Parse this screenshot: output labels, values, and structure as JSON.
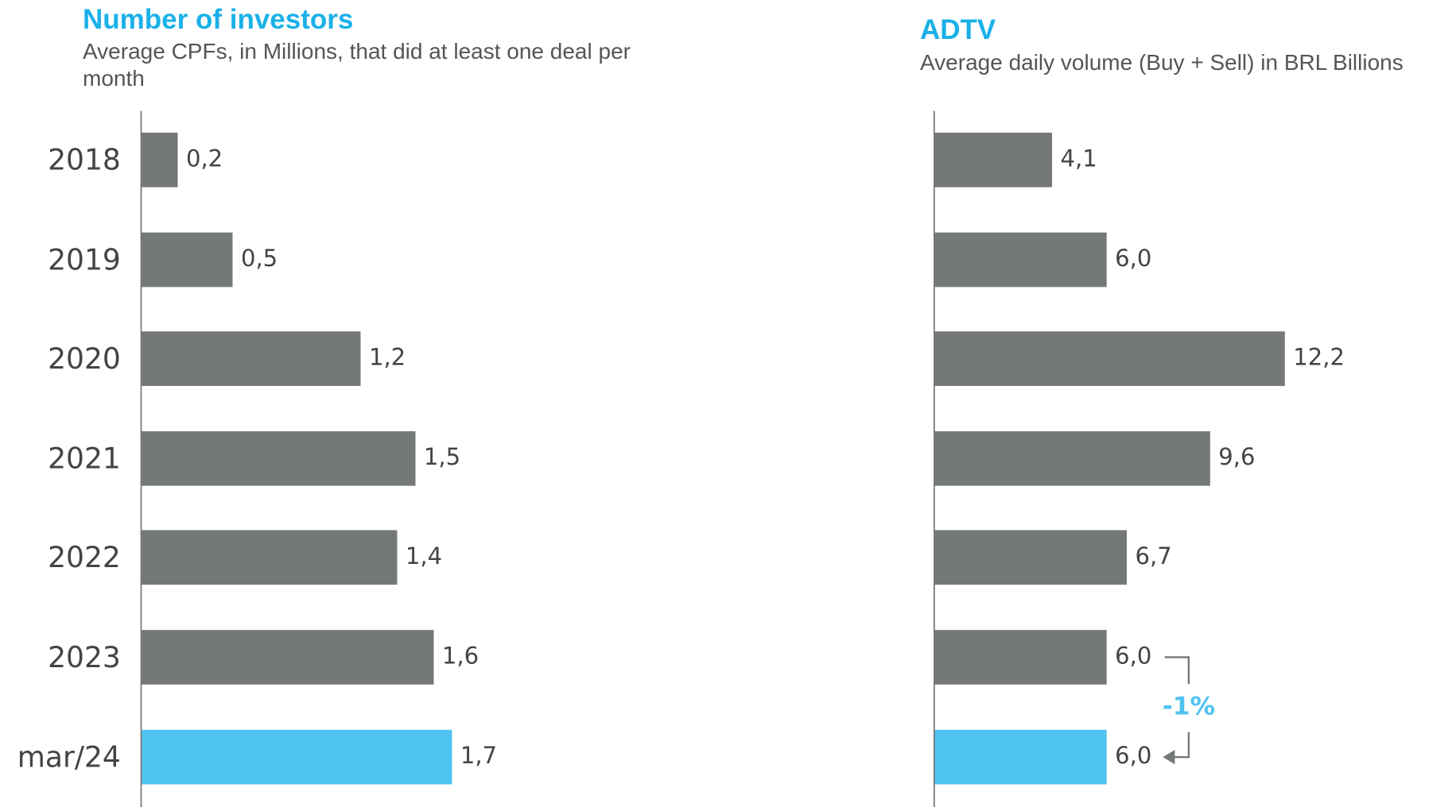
{
  "chart_data": [
    {
      "type": "bar",
      "orientation": "horizontal",
      "title": "Number of investors",
      "subtitle": "Average CPFs, in Millions, that did at least one deal per month",
      "categories": [
        "2018",
        "2019",
        "2020",
        "2021",
        "2022",
        "2023",
        "mar/24"
      ],
      "values": [
        0.2,
        0.5,
        1.2,
        1.5,
        1.4,
        1.6,
        1.7
      ],
      "value_labels": [
        "0,2",
        "0,5",
        "1,2",
        "1,5",
        "1,4",
        "1,6",
        "1,7"
      ],
      "colors": [
        "#747877",
        "#747877",
        "#747877",
        "#747877",
        "#747877",
        "#747877",
        "#4fc3f1"
      ],
      "xlim": [
        0,
        4.2
      ]
    },
    {
      "type": "bar",
      "orientation": "horizontal",
      "title": "ADTV",
      "subtitle": "Average daily volume (Buy + Sell) in BRL Billions",
      "categories": [
        "2018",
        "2019",
        "2020",
        "2021",
        "2022",
        "2023",
        "mar/24"
      ],
      "values": [
        4.1,
        6.0,
        12.2,
        9.6,
        6.7,
        6.0,
        6.0
      ],
      "value_labels": [
        "4,1",
        "6,0",
        "12,2",
        "9,6",
        "6,7",
        "6,0",
        "6,0"
      ],
      "colors": [
        "#747877",
        "#747877",
        "#747877",
        "#747877",
        "#747877",
        "#747877",
        "#4fc3f1"
      ],
      "xlim": [
        0,
        18
      ],
      "annotation": "-1%"
    }
  ]
}
